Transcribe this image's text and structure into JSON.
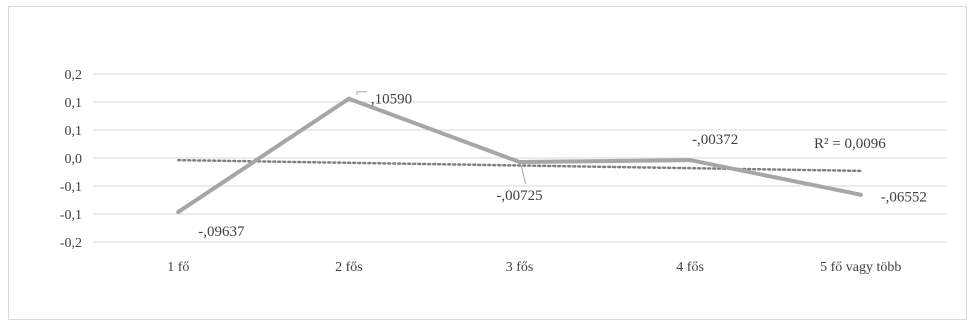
{
  "chart_data": {
    "type": "line",
    "categories": [
      "1 fő",
      "2 fős",
      "3 fős",
      "4 fős",
      "5 fő vagy több"
    ],
    "series": [
      {
        "values": [
          -0.09637,
          0.1059,
          -0.00725,
          -0.00372,
          -0.06552
        ],
        "value_labels": [
          "-,09637",
          ",10590",
          "-,00725",
          "-,00372",
          "-,06552"
        ],
        "color": "#a6a6a6"
      }
    ],
    "trendline": {
      "type": "linear",
      "style": "dotted",
      "color": "#808080",
      "r_squared_label": "R² = 0,0096"
    },
    "y_ticks": [
      {
        "value": 0.15,
        "label": "0,2"
      },
      {
        "value": 0.1,
        "label": "0,1"
      },
      {
        "value": 0.05,
        "label": "0,1"
      },
      {
        "value": 0.0,
        "label": "0,0"
      },
      {
        "value": -0.05,
        "label": "-0,1"
      },
      {
        "value": -0.1,
        "label": "-0,1"
      },
      {
        "value": -0.15,
        "label": "-0,2"
      }
    ],
    "ylim": [
      -0.15,
      0.15
    ],
    "grid": true,
    "title": "",
    "xlabel": "",
    "ylabel": ""
  }
}
